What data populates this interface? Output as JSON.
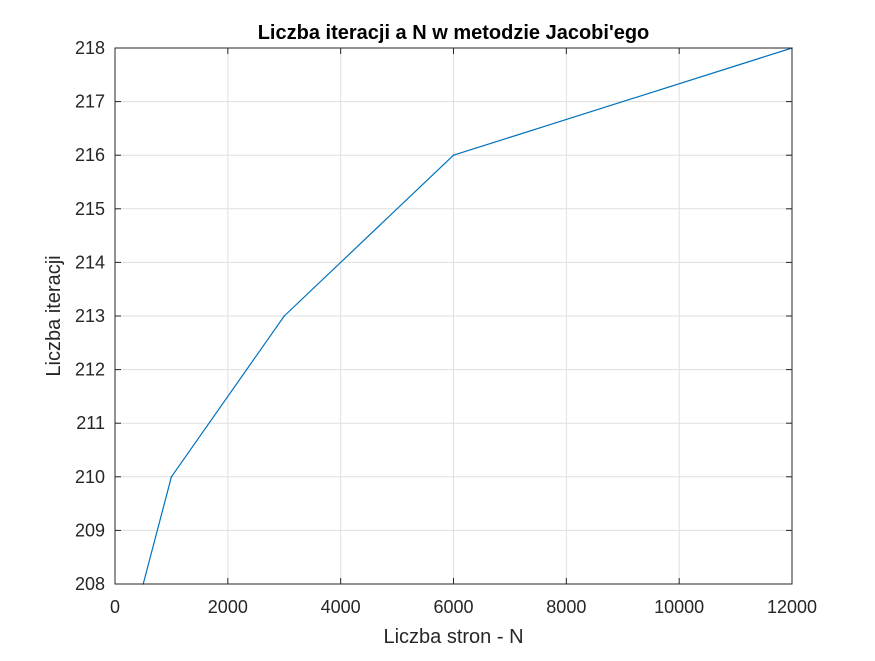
{
  "chart_data": {
    "type": "line",
    "title": "Liczba iteracji a N w metodzie Jacobi'ego",
    "xlabel": "Liczba stron - N",
    "ylabel": "Liczba iteracji",
    "xlim": [
      0,
      12000
    ],
    "ylim": [
      208,
      218
    ],
    "xticks": [
      "0",
      "2000",
      "4000",
      "6000",
      "8000",
      "10000",
      "12000"
    ],
    "yticks": [
      "208",
      "209",
      "210",
      "211",
      "212",
      "213",
      "214",
      "215",
      "216",
      "217",
      "218"
    ],
    "grid": true,
    "legend": "none",
    "series": [
      {
        "color": "#0072BD",
        "x": [
          500,
          1000,
          3000,
          6000,
          12000
        ],
        "y": [
          208,
          210,
          213,
          216,
          218
        ]
      }
    ]
  }
}
